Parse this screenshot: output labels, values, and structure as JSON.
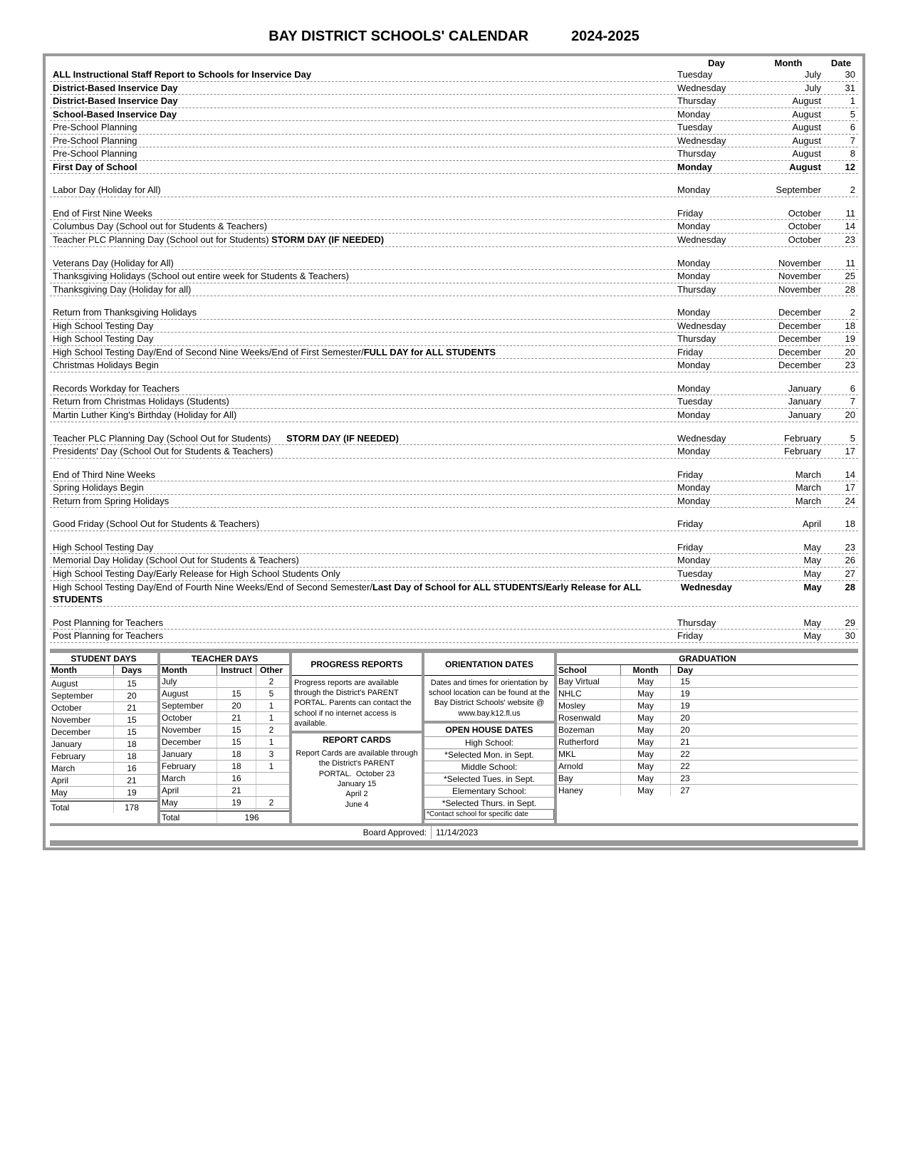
{
  "title_main": "BAY DISTRICT SCHOOLS' CALENDAR",
  "title_year": "2024-2025",
  "headers": {
    "day": "Day",
    "month": "Month",
    "date": "Date"
  },
  "groups": [
    [
      {
        "e": "ALL Instructional Staff Report to Schools for Inservice Day",
        "b": true,
        "d": "Tuesday",
        "m": "July",
        "n": "30"
      },
      {
        "e": "District-Based Inservice Day",
        "b": true,
        "d": "Wednesday",
        "m": "July",
        "n": "31"
      },
      {
        "e": "District-Based Inservice Day",
        "b": true,
        "d": "Thursday",
        "m": "August",
        "n": "1"
      },
      {
        "e": "School-Based Inservice Day",
        "b": true,
        "d": "Monday",
        "m": "August",
        "n": "5"
      },
      {
        "e": "Pre-School Planning",
        "d": "Tuesday",
        "m": "August",
        "n": "6"
      },
      {
        "e": "Pre-School Planning",
        "d": "Wednesday",
        "m": "August",
        "n": "7"
      },
      {
        "e": "Pre-School Planning",
        "d": "Thursday",
        "m": "August",
        "n": "8"
      },
      {
        "e": "First Day of School",
        "b": true,
        "d": "Monday",
        "db": true,
        "m": "August",
        "mb": true,
        "n": "12",
        "nb": true
      }
    ],
    [
      {
        "e": "Labor Day (Holiday for All)",
        "d": "Monday",
        "m": "September",
        "n": "2"
      }
    ],
    [
      {
        "e": "End of First Nine Weeks",
        "d": "Friday",
        "m": "October",
        "n": "11"
      },
      {
        "e": "Columbus Day (School out for Students & Teachers)",
        "d": "Monday",
        "m": "October",
        "n": "14"
      },
      {
        "e": "Teacher PLC Planning Day (School out for Students)   <b>STORM DAY (IF NEEDED)</b>",
        "html": true,
        "d": "Wednesday",
        "m": "October",
        "n": "23"
      }
    ],
    [
      {
        "e": "Veterans Day (Holiday for All)",
        "d": "Monday",
        "m": "November",
        "n": "11"
      },
      {
        "e": "Thanksgiving Holidays (School out entire week for Students & Teachers)",
        "d": "Monday",
        "m": "November",
        "n": "25"
      },
      {
        "e": "Thanksgiving Day (Holiday for all)",
        "d": "Thursday",
        "m": "November",
        "n": "28"
      }
    ],
    [
      {
        "e": "Return from Thanksgiving Holidays",
        "d": "Monday",
        "m": "December",
        "n": "2"
      },
      {
        "e": "High School Testing Day",
        "d": "Wednesday",
        "m": "December",
        "n": "18"
      },
      {
        "e": "High School Testing Day",
        "d": "Thursday",
        "m": "December",
        "n": "19"
      },
      {
        "e": "High School Testing Day/End of Second Nine Weeks/End of First Semester/<b>FULL DAY for ALL STUDENTS</b>",
        "html": true,
        "d": "Friday",
        "m": "December",
        "n": "20"
      },
      {
        "e": "Christmas Holidays Begin",
        "d": "Monday",
        "m": "December",
        "n": "23"
      }
    ],
    [
      {
        "e": "Records Workday for Teachers",
        "d": "Monday",
        "m": "January",
        "n": "6"
      },
      {
        "e": "Return from Christmas Holidays (Students)",
        "d": "Tuesday",
        "m": "January",
        "n": "7"
      },
      {
        "e": "Martin Luther King's Birthday (Holiday for All)",
        "d": "Monday",
        "m": "January",
        "n": "20"
      }
    ],
    [
      {
        "e": "Teacher PLC Planning Day (School Out for Students) &nbsp;&nbsp;&nbsp;&nbsp; <b>STORM DAY (IF NEEDED)</b>",
        "html": true,
        "d": "Wednesday",
        "m": "February",
        "n": "5"
      },
      {
        "e": "Presidents' Day (School Out for Students & Teachers)",
        "d": "Monday",
        "m": "February",
        "n": "17"
      }
    ],
    [
      {
        "e": "End of Third Nine Weeks",
        "d": "Friday",
        "m": "March",
        "n": "14"
      },
      {
        "e": "Spring Holidays Begin",
        "d": "Monday",
        "m": "March",
        "n": "17"
      },
      {
        "e": "Return from Spring Holidays",
        "d": "Monday",
        "m": "March",
        "n": "24"
      }
    ],
    [
      {
        "e": "Good Friday (School Out for Students & Teachers)",
        "d": "Friday",
        "m": "April",
        "n": "18"
      }
    ],
    [
      {
        "e": "High School Testing Day",
        "d": "Friday",
        "m": "May",
        "n": "23"
      },
      {
        "e": "Memorial Day Holiday (School Out for Students & Teachers)",
        "d": "Monday",
        "m": "May",
        "n": "26"
      },
      {
        "e": "High School Testing Day/Early Release for High School Students Only",
        "d": "Tuesday",
        "m": "May",
        "n": "27"
      },
      {
        "e": "High School Testing Day/End of Fourth Nine Weeks/End of Second Semester/<b>Last Day of School for ALL STUDENTS/Early Release for ALL STUDENTS</b>",
        "html": true,
        "d": "Wednesday",
        "db": true,
        "m": "May",
        "mb": true,
        "n": "28",
        "nb": true
      }
    ],
    [
      {
        "e": "Post Planning for Teachers",
        "d": "Thursday",
        "m": "May",
        "n": "29"
      },
      {
        "e": "Post Planning for Teachers",
        "d": "Friday",
        "m": "May",
        "n": "30"
      }
    ]
  ],
  "student_days_header": "STUDENT DAYS",
  "teacher_days_header": "TEACHER DAYS",
  "sd_cols": {
    "month": "Month",
    "days": "Days"
  },
  "td_cols": {
    "month": "Month",
    "instruct": "Instruct",
    "other": "Other"
  },
  "student_days": [
    {
      "m": "",
      "d": ""
    },
    {
      "m": "August",
      "d": "15"
    },
    {
      "m": "September",
      "d": "20"
    },
    {
      "m": "October",
      "d": "21"
    },
    {
      "m": "November",
      "d": "15"
    },
    {
      "m": "December",
      "d": "15"
    },
    {
      "m": "January",
      "d": "18"
    },
    {
      "m": "February",
      "d": "18"
    },
    {
      "m": "March",
      "d": "16"
    },
    {
      "m": "April",
      "d": "21"
    },
    {
      "m": "May",
      "d": "19"
    },
    {
      "m": "",
      "d": ""
    }
  ],
  "sd_total": {
    "label": "Total",
    "val": "178"
  },
  "teacher_days": [
    {
      "m": "July",
      "i": "",
      "o": "2"
    },
    {
      "m": "August",
      "i": "15",
      "o": "5"
    },
    {
      "m": "September",
      "i": "20",
      "o": "1"
    },
    {
      "m": "October",
      "i": "21",
      "o": "1"
    },
    {
      "m": "November",
      "i": "15",
      "o": "2"
    },
    {
      "m": "December",
      "i": "15",
      "o": "1"
    },
    {
      "m": "January",
      "i": "18",
      "o": "3"
    },
    {
      "m": "February",
      "i": "18",
      "o": "1"
    },
    {
      "m": "March",
      "i": "16",
      "o": ""
    },
    {
      "m": "April",
      "i": "21",
      "o": ""
    },
    {
      "m": "May",
      "i": "19",
      "o": "2"
    },
    {
      "m": "",
      "i": "",
      "o": ""
    }
  ],
  "td_total": {
    "label": "Total",
    "val": "196"
  },
  "progress_header": "PROGRESS REPORTS",
  "progress_text": "Progress reports are available through the District's PARENT PORTAL. Parents can contact the school if no internet access is available.",
  "report_header": "REPORT CARDS",
  "report_text1": "Report Cards are available through the District's PARENT",
  "report_text2": "PORTAL.",
  "report_dates": [
    "October 23",
    "January 15",
    "April 2",
    "June 4"
  ],
  "orient_header": "ORIENTATION DATES",
  "orient_text": "Dates and times for orientation by school location can be found at the Bay District Schools' website @ www.bay.k12.fl.us",
  "openhouse_header": "OPEN HOUSE DATES",
  "openhouse": [
    "High School:",
    "*Selected Mon. in Sept.",
    "Middle School:",
    "*Selected Tues. in Sept.",
    "Elementary School:",
    "*Selected Thurs. in Sept."
  ],
  "oh_note": "*Contact school for specific date",
  "grad_header": "GRADUATION",
  "grad_cols": {
    "s": "School",
    "m": "Month",
    "d": "Day"
  },
  "graduation": [
    {
      "s": "Bay Virtual",
      "m": "May",
      "d": "15"
    },
    {
      "s": "NHLC",
      "m": "May",
      "d": "19"
    },
    {
      "s": "Mosley",
      "m": "May",
      "d": "19"
    },
    {
      "s": "Rosenwald",
      "m": "May",
      "d": "20"
    },
    {
      "s": "Bozeman",
      "m": "May",
      "d": "20"
    },
    {
      "s": "Rutherford",
      "m": "May",
      "d": "21"
    },
    {
      "s": "MKL",
      "m": "May",
      "d": "22"
    },
    {
      "s": "Arnold",
      "m": "May",
      "d": "22"
    },
    {
      "s": "Bay",
      "m": "May",
      "d": "23"
    },
    {
      "s": "Haney",
      "m": "May",
      "d": "27"
    }
  ],
  "board_label": "Board Approved:",
  "board_date": "11/14/2023"
}
